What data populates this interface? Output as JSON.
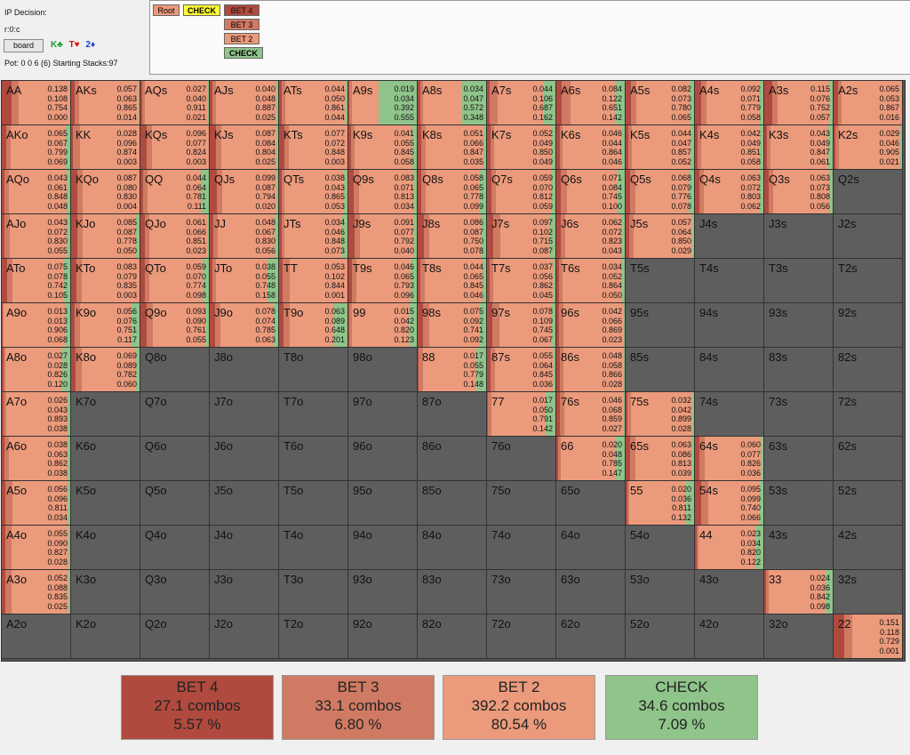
{
  "info": {
    "decision_label": "IP Decision:",
    "node_label": "r:0:c",
    "board_button_label": "board",
    "board_cards": [
      {
        "text": "K♣",
        "color": "#1a9e2a"
      },
      {
        "text": "T♥",
        "color": "#d01515"
      },
      {
        "text": "2♦",
        "color": "#1f3fd6"
      }
    ],
    "pot_text": "Pot: 0 0 6 (6) Starting Stacks:97"
  },
  "tree": {
    "root_label": "Root",
    "check_label": "CHECK",
    "bet4_label": "BET 4",
    "bet3_label": "BET 3",
    "bet2_label": "BET 2",
    "check2_label": "CHECK"
  },
  "colors": {
    "bet4": "#b04a3e",
    "bet3": "#d07a63",
    "bet2": "#eb9a7c",
    "check": "#8fc48a",
    "empty": "#5e5e5e",
    "check_node": "#ffff33"
  },
  "ranks": [
    "A",
    "K",
    "Q",
    "J",
    "T",
    "9",
    "8",
    "7",
    "6",
    "5",
    "4",
    "3",
    "2"
  ],
  "hands": {
    "AA": [
      0.138,
      0.108,
      0.754,
      0.0
    ],
    "AKs": [
      0.057,
      0.063,
      0.865,
      0.014
    ],
    "AQs": [
      0.027,
      0.04,
      0.911,
      0.021
    ],
    "AJs": [
      0.04,
      0.048,
      0.887,
      0.025
    ],
    "ATs": [
      0.044,
      0.05,
      0.861,
      0.044
    ],
    "A9s": [
      0.019,
      0.034,
      0.392,
      0.555
    ],
    "A8s": [
      0.034,
      0.047,
      0.572,
      0.348
    ],
    "A7s": [
      0.044,
      0.106,
      0.687,
      0.162
    ],
    "A6s": [
      0.084,
      0.122,
      0.651,
      0.142
    ],
    "A5s": [
      0.082,
      0.073,
      0.78,
      0.065
    ],
    "A4s": [
      0.092,
      0.071,
      0.779,
      0.058
    ],
    "A3s": [
      0.115,
      0.076,
      0.752,
      0.057
    ],
    "A2s": [
      0.065,
      0.053,
      0.867,
      0.016
    ],
    "AKo": [
      0.065,
      0.067,
      0.799,
      0.069
    ],
    "KK": [
      0.028,
      0.096,
      0.874,
      0.003
    ],
    "KQs": [
      0.096,
      0.077,
      0.824,
      0.003
    ],
    "KJs": [
      0.087,
      0.084,
      0.804,
      0.025
    ],
    "KTs": [
      0.077,
      0.072,
      0.848,
      0.003
    ],
    "K9s": [
      0.041,
      0.055,
      0.845,
      0.058
    ],
    "K8s": [
      0.051,
      0.066,
      0.847,
      0.035
    ],
    "K7s": [
      0.052,
      0.049,
      0.85,
      0.049
    ],
    "K6s": [
      0.046,
      0.044,
      0.864,
      0.046
    ],
    "K5s": [
      0.044,
      0.047,
      0.857,
      0.052
    ],
    "K4s": [
      0.042,
      0.049,
      0.851,
      0.058
    ],
    "K3s": [
      0.043,
      0.049,
      0.847,
      0.061
    ],
    "K2s": [
      0.029,
      0.046,
      0.905,
      0.021
    ],
    "AQo": [
      0.043,
      0.061,
      0.848,
      0.048
    ],
    "KQo": [
      0.087,
      0.08,
      0.83,
      0.004
    ],
    "QQ": [
      0.044,
      0.064,
      0.781,
      0.111
    ],
    "QJs": [
      0.099,
      0.087,
      0.794,
      0.02
    ],
    "QTs": [
      0.038,
      0.043,
      0.865,
      0.053
    ],
    "Q9s": [
      0.083,
      0.071,
      0.813,
      0.034
    ],
    "Q8s": [
      0.058,
      0.065,
      0.778,
      0.099
    ],
    "Q7s": [
      0.059,
      0.07,
      0.812,
      0.059
    ],
    "Q6s": [
      0.071,
      0.084,
      0.745,
      0.1
    ],
    "Q5s": [
      0.068,
      0.079,
      0.776,
      0.078
    ],
    "Q4s": [
      0.063,
      0.072,
      0.803,
      0.062
    ],
    "Q3s": [
      0.063,
      0.073,
      0.808,
      0.056
    ],
    "AJo": [
      0.043,
      0.072,
      0.83,
      0.055
    ],
    "KJo": [
      0.085,
      0.087,
      0.778,
      0.05
    ],
    "QJo": [
      0.061,
      0.066,
      0.851,
      0.023
    ],
    "JJ": [
      0.048,
      0.067,
      0.83,
      0.056
    ],
    "JTs": [
      0.034,
      0.046,
      0.848,
      0.073
    ],
    "J9s": [
      0.091,
      0.077,
      0.792,
      0.04
    ],
    "J8s": [
      0.086,
      0.087,
      0.75,
      0.078
    ],
    "J7s": [
      0.097,
      0.102,
      0.715,
      0.087
    ],
    "J6s": [
      0.062,
      0.072,
      0.823,
      0.043
    ],
    "J5s": [
      0.057,
      0.064,
      0.85,
      0.029
    ],
    "ATo": [
      0.075,
      0.078,
      0.742,
      0.105
    ],
    "KTo": [
      0.083,
      0.079,
      0.835,
      0.003
    ],
    "QTo": [
      0.059,
      0.07,
      0.774,
      0.098
    ],
    "JTo": [
      0.038,
      0.055,
      0.748,
      0.158
    ],
    "TT": [
      0.053,
      0.102,
      0.844,
      0.001
    ],
    "T9s": [
      0.046,
      0.065,
      0.793,
      0.096
    ],
    "T8s": [
      0.044,
      0.065,
      0.845,
      0.046
    ],
    "T7s": [
      0.037,
      0.056,
      0.862,
      0.045
    ],
    "T6s": [
      0.034,
      0.052,
      0.864,
      0.05
    ],
    "A9o": [
      0.013,
      0.013,
      0.906,
      0.068
    ],
    "K9o": [
      0.056,
      0.076,
      0.751,
      0.117
    ],
    "Q9o": [
      0.093,
      0.09,
      0.761,
      0.055
    ],
    "J9o": [
      0.078,
      0.074,
      0.785,
      0.063
    ],
    "T9o": [
      0.063,
      0.089,
      0.648,
      0.201
    ],
    "99": [
      0.015,
      0.042,
      0.82,
      0.123
    ],
    "98s": [
      0.075,
      0.092,
      0.741,
      0.092
    ],
    "97s": [
      0.078,
      0.109,
      0.745,
      0.067
    ],
    "96s": [
      0.042,
      0.066,
      0.869,
      0.023
    ],
    "A8o": [
      0.027,
      0.028,
      0.826,
      0.12
    ],
    "K8o": [
      0.069,
      0.089,
      0.782,
      0.06
    ],
    "88": [
      0.017,
      0.055,
      0.779,
      0.148
    ],
    "87s": [
      0.055,
      0.064,
      0.845,
      0.036
    ],
    "86s": [
      0.048,
      0.058,
      0.866,
      0.028
    ],
    "A7o": [
      0.026,
      0.043,
      0.893,
      0.038
    ],
    "77": [
      0.017,
      0.05,
      0.791,
      0.142
    ],
    "76s": [
      0.046,
      0.068,
      0.859,
      0.027
    ],
    "75s": [
      0.032,
      0.042,
      0.899,
      0.028
    ],
    "A6o": [
      0.038,
      0.063,
      0.862,
      0.038
    ],
    "66": [
      0.02,
      0.048,
      0.785,
      0.147
    ],
    "65s": [
      0.063,
      0.086,
      0.813,
      0.039
    ],
    "64s": [
      0.06,
      0.077,
      0.826,
      0.036
    ],
    "A5o": [
      0.056,
      0.096,
      0.811,
      0.034
    ],
    "55": [
      0.02,
      0.036,
      0.811,
      0.132
    ],
    "54s": [
      0.095,
      0.099,
      0.74,
      0.066
    ],
    "A4o": [
      0.055,
      0.09,
      0.827,
      0.028
    ],
    "44": [
      0.023,
      0.034,
      0.82,
      0.122
    ],
    "A3o": [
      0.052,
      0.088,
      0.835,
      0.025
    ],
    "33": [
      0.024,
      0.036,
      0.842,
      0.098
    ],
    "22": [
      0.151,
      0.118,
      0.729,
      0.001
    ]
  },
  "summary": [
    {
      "label": "BET 4",
      "combos": "27.1 combos",
      "pct": "5.57 %"
    },
    {
      "label": "BET 3",
      "combos": "33.1 combos",
      "pct": "6.80 %"
    },
    {
      "label": "BET 2",
      "combos": "392.2 combos",
      "pct": "80.54 %"
    },
    {
      "label": "CHECK",
      "combos": "34.6 combos",
      "pct": "7.09 %"
    }
  ]
}
